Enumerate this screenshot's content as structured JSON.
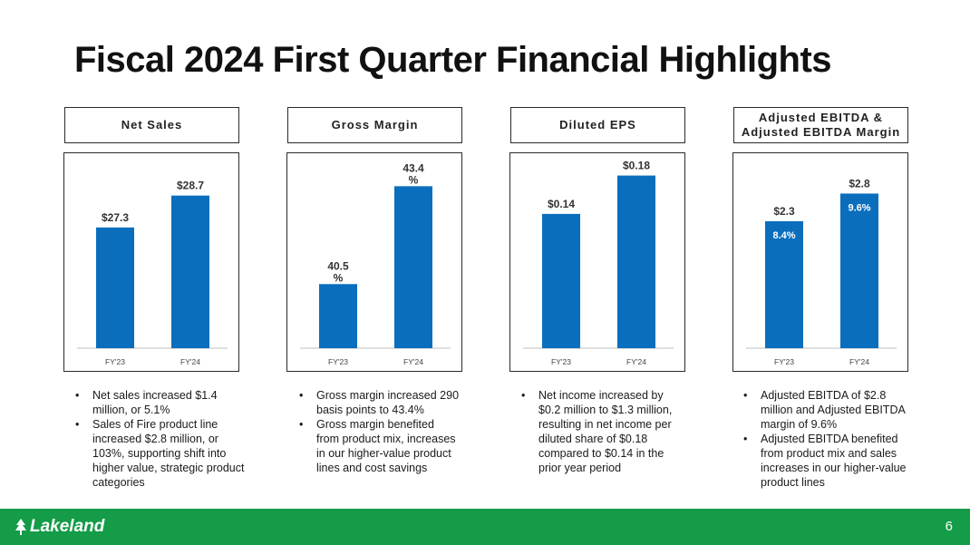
{
  "title": "Fiscal 2024 First Quarter Financial Highlights",
  "colors": {
    "bar": "#0a6ebd",
    "footer": "#149c48",
    "axis": "#bfbfbf"
  },
  "panels": [
    {
      "header": "Net Sales",
      "bullets": [
        "Net sales increased $1.4 million, or 5.1%",
        "Sales of Fire product line increased $2.8 million, or 103%, supporting shift into higher value, strategic product categories"
      ]
    },
    {
      "header": "Gross Margin",
      "bullets": [
        "Gross margin increased 290 basis points to 43.4%",
        "Gross margin benefited from product mix, increases in our higher-value product lines and cost savings"
      ]
    },
    {
      "header": "Diluted EPS",
      "bullets": [
        "Net income increased by $0.2 million to $1.3 million, resulting in net income per diluted share of $0.18 compared to $0.14 in the prior year period"
      ]
    },
    {
      "header": "Adjusted EBITDA &\nAdjusted EBITDA Margin",
      "bullets": [
        "Adjusted EBITDA of $2.8 million and Adjusted EBITDA margin of 9.6%",
        "Adjusted EBITDA benefited from product mix and sales increases in our higher-value product lines"
      ]
    }
  ],
  "chart_data": [
    {
      "type": "bar",
      "title": "Net Sales",
      "categories": [
        "FY'23",
        "FY'24"
      ],
      "values": [
        27.3,
        28.7
      ],
      "labels": [
        "$27.3",
        "$28.7"
      ],
      "ylim": [
        22,
        30
      ]
    },
    {
      "type": "bar",
      "title": "Gross Margin",
      "categories": [
        "FY'23",
        "FY'24"
      ],
      "values": [
        40.5,
        43.4
      ],
      "labels": [
        "40.5\n%",
        "43.4\n%"
      ],
      "ylim": [
        38.6,
        44
      ]
    },
    {
      "type": "bar",
      "title": "Diluted EPS",
      "categories": [
        "FY'23",
        "FY'24"
      ],
      "values": [
        0.14,
        0.18
      ],
      "labels": [
        "$0.14",
        "$0.18"
      ],
      "ylim": [
        0,
        0.19
      ]
    },
    {
      "type": "bar",
      "title": "Adjusted EBITDA & Adjusted EBITDA Margin",
      "categories": [
        "FY'23",
        "FY'24"
      ],
      "values": [
        2.3,
        2.8
      ],
      "labels": [
        "$2.3",
        "$2.8"
      ],
      "inner_labels": [
        "8.4%",
        "9.6%"
      ],
      "ylim": [
        0,
        3.3
      ]
    }
  ],
  "footer": {
    "logo_text": "Lakeland",
    "page_number": "6"
  }
}
